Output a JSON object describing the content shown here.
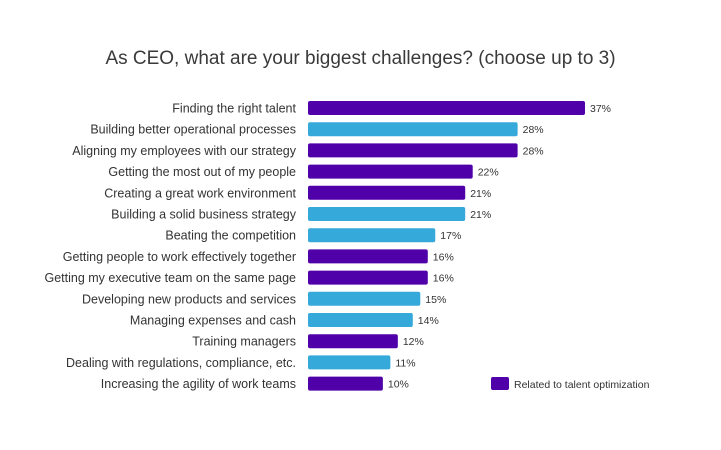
{
  "chart_data": {
    "type": "bar",
    "orientation": "horizontal",
    "title": "As CEO, what are your biggest challenges? (choose up to 3)",
    "categories": [
      "Finding the right talent",
      "Building better operational processes",
      "Aligning my employees with our strategy",
      "Getting the most out of my people",
      "Creating a great work environment",
      "Building a solid business strategy",
      "Beating the competition",
      "Getting people to work effectively together",
      "Getting my executive team on the same page",
      "Developing new products and services",
      "Managing expenses and cash",
      "Training managers",
      "Dealing with regulations, compliance, etc.",
      "Increasing the agility of work teams"
    ],
    "values": [
      37,
      28,
      28,
      22,
      21,
      21,
      17,
      16,
      16,
      15,
      14,
      12,
      11,
      10
    ],
    "value_labels": [
      "37%",
      "28%",
      "28%",
      "22%",
      "21%",
      "21%",
      "17%",
      "16%",
      "16%",
      "15%",
      "14%",
      "12%",
      "11%",
      "10%"
    ],
    "talent_related": [
      true,
      false,
      true,
      true,
      true,
      false,
      false,
      true,
      true,
      false,
      false,
      true,
      false,
      true
    ],
    "colors": {
      "talent": "#5000a8",
      "other": "#35a9d9"
    },
    "legend": {
      "label": "Related to talent optimization",
      "placement": "bottom-right"
    },
    "xlim": [
      0,
      37
    ],
    "grid": false
  }
}
